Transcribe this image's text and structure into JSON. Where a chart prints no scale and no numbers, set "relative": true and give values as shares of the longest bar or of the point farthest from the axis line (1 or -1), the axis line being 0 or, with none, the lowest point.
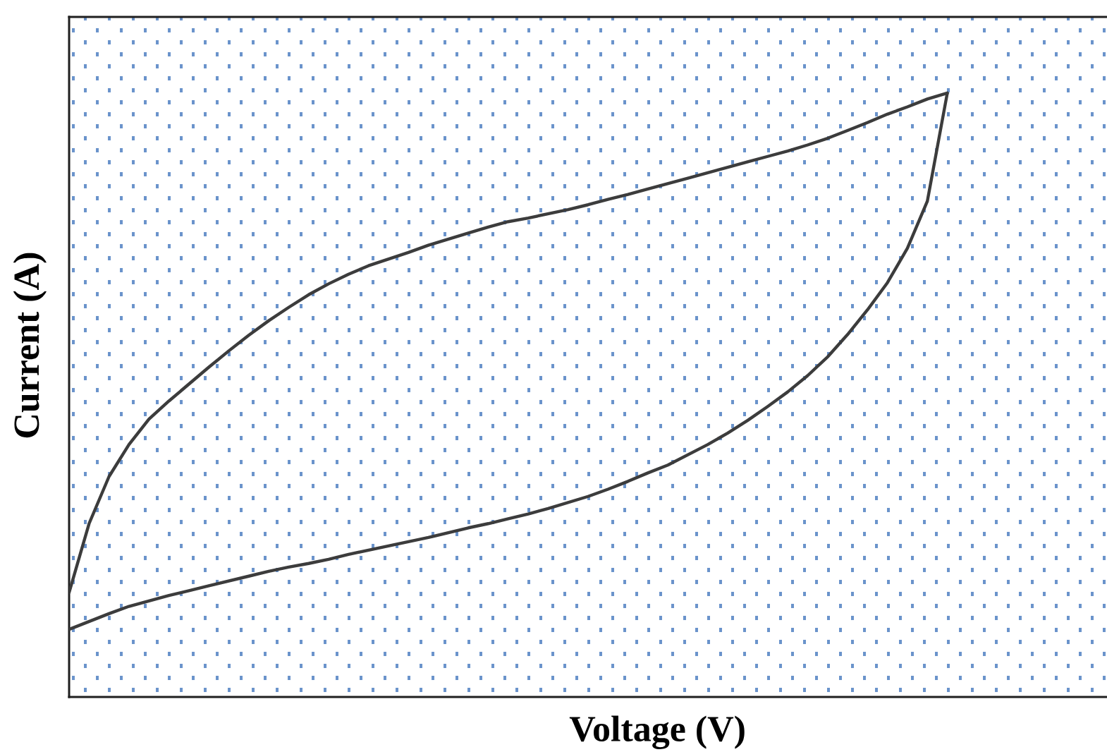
{
  "chart_data": {
    "type": "line",
    "xlabel": "Voltage (V)",
    "ylabel": "Current (A)",
    "relative": true,
    "categories": [
      null,
      null,
      null,
      null,
      null,
      null,
      null,
      null,
      null,
      null,
      null,
      null,
      null,
      null,
      null,
      null,
      null,
      null,
      null,
      null,
      null,
      null,
      null,
      null,
      null,
      null,
      null,
      null,
      null,
      null,
      null,
      null,
      null,
      null,
      null,
      null,
      null,
      null,
      null,
      null,
      null,
      null,
      null,
      null,
      null,
      null,
      null,
      null,
      null,
      null,
      null,
      null,
      null
    ],
    "series": [
      {
        "color": "#3c3c3c",
        "values": [
          0.173,
          0.287,
          0.365,
          0.418,
          0.46,
          0.49,
          0.518,
          0.546,
          0.573,
          0.599,
          0.623,
          0.645,
          0.666,
          0.684,
          0.7,
          0.714,
          0.725,
          0.736,
          0.748,
          0.758,
          0.768,
          0.778,
          0.787,
          0.793,
          0.8,
          0.807,
          0.815,
          0.824,
          0.832,
          0.841,
          0.85,
          0.859,
          0.868,
          0.877,
          0.886,
          0.895,
          0.904,
          0.914,
          0.925,
          0.938,
          0.951,
          0.965,
          0.977,
          0.99,
          1.0,
          null,
          null,
          null,
          null,
          null,
          null,
          null,
          null
        ]
      },
      {
        "color": "#3c3c3c",
        "values": [
          0.112,
          0.125,
          0.138,
          0.15,
          0.159,
          0.168,
          0.176,
          0.184,
          0.192,
          0.2,
          0.208,
          0.215,
          0.221,
          0.228,
          0.236,
          0.243,
          0.25,
          0.257,
          0.264,
          0.272,
          0.28,
          0.287,
          0.295,
          0.303,
          0.312,
          0.322,
          0.332,
          0.344,
          0.357,
          0.371,
          0.384,
          0.401,
          0.418,
          0.437,
          0.458,
          0.481,
          0.505,
          0.532,
          0.563,
          0.6,
          0.641,
          0.686,
          0.743,
          0.821,
          1.0,
          null,
          null,
          null,
          null,
          null,
          null,
          null,
          null
        ]
      }
    ]
  }
}
